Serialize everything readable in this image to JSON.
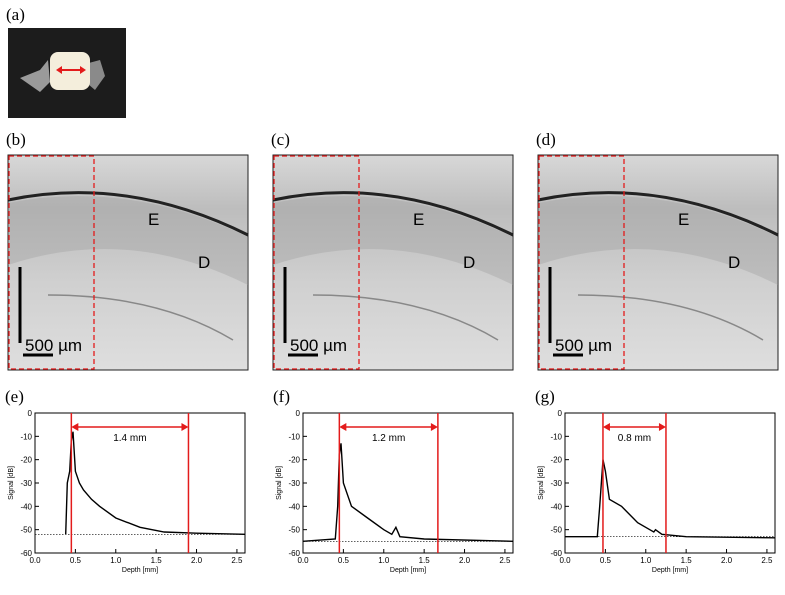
{
  "panel_labels": [
    "(a)",
    "(b)",
    "(c)",
    "(d)",
    "(e)",
    "(f)",
    "(g)"
  ],
  "images": [
    {
      "E": "E",
      "D": "D",
      "scale": "500 µm"
    },
    {
      "E": "E",
      "D": "D",
      "scale": "500 µm"
    },
    {
      "E": "E",
      "D": "D",
      "scale": "500 µm"
    }
  ],
  "plots": [
    {
      "xlabel": "Depth [mm]",
      "ylabel": "Signal [dB]",
      "annotation": "1.4 mm",
      "xlim": [
        0,
        2.6
      ],
      "ylim": [
        -60,
        0
      ],
      "xticks": [
        {
          "value": 0,
          "label": "0.0"
        },
        {
          "value": 0.5,
          "label": "0.5"
        },
        {
          "value": 1,
          "label": "1.0"
        },
        {
          "value": 1.5,
          "label": "1.5"
        },
        {
          "value": 2,
          "label": "2.0"
        },
        {
          "value": 2.5,
          "label": "2.5"
        }
      ],
      "yticks": [
        0,
        -10,
        -20,
        -30,
        -40,
        -50,
        -60
      ],
      "markers": [
        0.45,
        1.9
      ],
      "baseline": -52,
      "x": [
        0.38,
        0.4,
        0.43,
        0.45,
        0.47,
        0.5,
        0.55,
        0.6,
        0.7,
        0.8,
        1.0,
        1.3,
        1.6,
        2.0,
        2.6
      ],
      "values": [
        -52,
        -30,
        -25,
        -12,
        -8,
        -25,
        -30,
        -33,
        -37,
        -40,
        -45,
        -49,
        -51,
        -51.5,
        -52
      ]
    },
    {
      "xlabel": "Depth [mm]",
      "ylabel": "Signal [dB]",
      "annotation": "1.2 mm",
      "xlim": [
        0,
        2.6
      ],
      "ylim": [
        -60,
        0
      ],
      "xticks": [
        {
          "value": 0,
          "label": "0.0"
        },
        {
          "value": 0.5,
          "label": "0.5"
        },
        {
          "value": 1,
          "label": "1.0"
        },
        {
          "value": 1.5,
          "label": "1.5"
        },
        {
          "value": 2,
          "label": "2.0"
        },
        {
          "value": 2.5,
          "label": "2.5"
        }
      ],
      "yticks": [
        0,
        -10,
        -20,
        -30,
        -40,
        -50,
        -60
      ],
      "markers": [
        0.45,
        1.67
      ],
      "baseline": -55,
      "x": [
        0.0,
        0.4,
        0.43,
        0.45,
        0.47,
        0.5,
        0.6,
        0.8,
        1.0,
        1.1,
        1.15,
        1.2,
        1.5,
        2.6
      ],
      "values": [
        -55,
        -54,
        -40,
        -18,
        -13,
        -30,
        -40,
        -45,
        -50,
        -52,
        -49,
        -53,
        -54,
        -55
      ]
    },
    {
      "xlabel": "Depth [mm]",
      "ylabel": "Signal [dB]",
      "annotation": "0.8 mm",
      "xlim": [
        0,
        2.6
      ],
      "ylim": [
        -60,
        0
      ],
      "xticks": [
        {
          "value": 0,
          "label": "0.0"
        },
        {
          "value": 0.5,
          "label": "0.5"
        },
        {
          "value": 1,
          "label": "1.0"
        },
        {
          "value": 1.5,
          "label": "1.5"
        },
        {
          "value": 2,
          "label": "2.0"
        },
        {
          "value": 2.5,
          "label": "2.5"
        }
      ],
      "yticks": [
        0,
        -10,
        -20,
        -30,
        -40,
        -50,
        -60
      ],
      "markers": [
        0.47,
        1.25
      ],
      "baseline": -53,
      "x": [
        0.0,
        0.4,
        0.43,
        0.47,
        0.5,
        0.55,
        0.7,
        0.9,
        1.05,
        1.1,
        1.12,
        1.2,
        1.5,
        2.6
      ],
      "values": [
        -53,
        -53,
        -40,
        -20,
        -25,
        -37,
        -40,
        -47,
        -50,
        -51,
        -50,
        -52,
        -53,
        -53.5
      ]
    }
  ]
}
